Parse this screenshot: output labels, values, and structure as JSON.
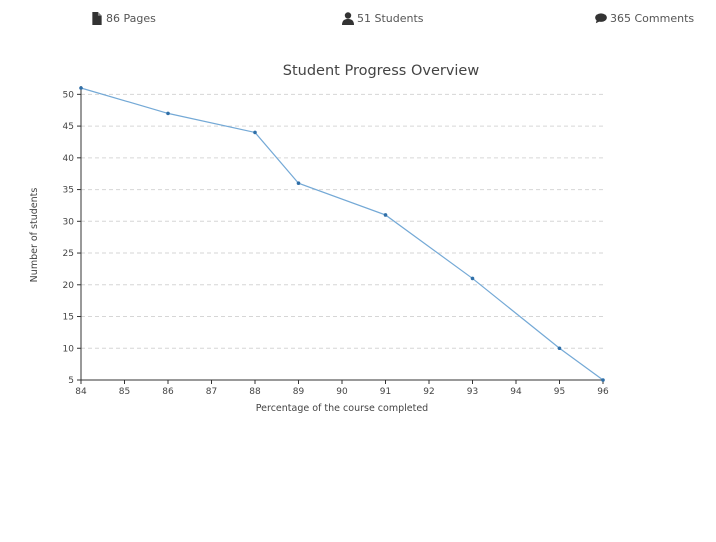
{
  "stats": {
    "pages": "86 Pages",
    "students": "51 Students",
    "comments": "365 Comments"
  },
  "icons": {
    "pages": "file-icon",
    "students": "user-icon",
    "comments": "comment-icon"
  },
  "colors": {
    "line": "#74a9d6",
    "points": "#2f6fa8",
    "text": "#555555"
  },
  "chart_data": {
    "type": "line",
    "title": "Student Progress Overview",
    "xlabel": "Percentage of the course completed",
    "ylabel": "Number of students",
    "x_ticks": [
      84,
      85,
      86,
      87,
      88,
      89,
      90,
      91,
      92,
      93,
      94,
      95,
      96
    ],
    "y_ticks": [
      5,
      10,
      15,
      20,
      25,
      30,
      35,
      40,
      45,
      50
    ],
    "ylim": [
      5,
      51
    ],
    "grid": "horizontal dashed",
    "x": [
      84,
      86,
      88,
      89,
      91,
      93,
      95,
      96
    ],
    "y": [
      51,
      47,
      44,
      36,
      31,
      21,
      10,
      5
    ]
  }
}
